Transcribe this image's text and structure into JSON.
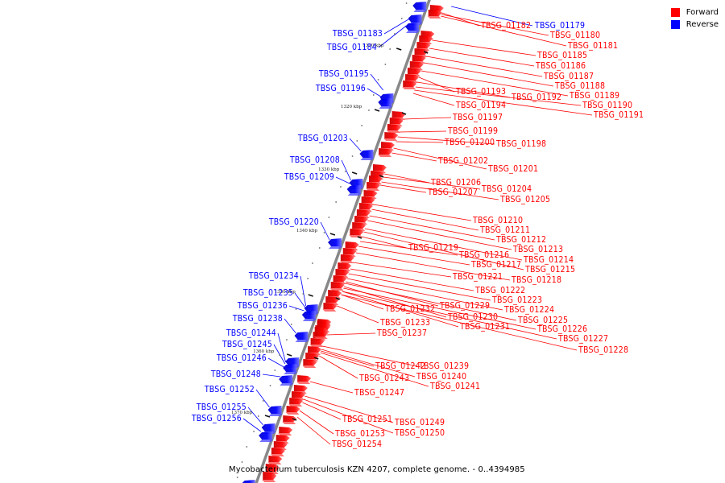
{
  "title": "Mycobacterium tuberculosis KZN 4207, complete genome. - 0..4394985",
  "colors": {
    "forward": "#ff0000",
    "reverse": "#0000ff",
    "backbone": "#888888",
    "tick": "#111111"
  },
  "legend": [
    {
      "label": "Forward",
      "color": "#ff0000"
    },
    {
      "label": "Reverse",
      "color": "#0000ff"
    }
  ],
  "scale_labels": [
    "1310 kbp",
    "1320 kbp",
    "1330 kbp",
    "1340 kbp",
    "1350 kbp",
    "1360 kbp",
    "1370 kbp"
  ],
  "reverse_genes": [
    "TBSG_01179",
    "TBSG_01183",
    "TBSG_01184",
    "TBSG_01195",
    "TBSG_01196",
    "TBSG_01203",
    "TBSG_01208",
    "TBSG_01209",
    "TBSG_01220",
    "TBSG_01234",
    "TBSG_01235",
    "TBSG_01236",
    "TBSG_01238",
    "TBSG_01244",
    "TBSG_01245",
    "TBSG_01246",
    "TBSG_01248",
    "TBSG_01252",
    "TBSG_01255",
    "TBSG_01256"
  ],
  "forward_genes": [
    "TBSG_01182",
    "TBSG_01180",
    "TBSG_01181",
    "TBSG_01185",
    "TBSG_01186",
    "TBSG_01187",
    "TBSG_01188",
    "TBSG_01193",
    "TBSG_01192",
    "TBSG_01189",
    "TBSG_01194",
    "TBSG_01190",
    "TBSG_01191",
    "TBSG_01197",
    "TBSG_01199",
    "TBSG_01200",
    "TBSG_01198",
    "TBSG_01202",
    "TBSG_01201",
    "TBSG_01206",
    "TBSG_01204",
    "TBSG_01207",
    "TBSG_01205",
    "TBSG_01210",
    "TBSG_01211",
    "TBSG_01212",
    "TBSG_01219",
    "TBSG_01213",
    "TBSG_01216",
    "TBSG_01214",
    "TBSG_01217",
    "TBSG_01215",
    "TBSG_01221",
    "TBSG_01218",
    "TBSG_01222",
    "TBSG_01223",
    "TBSG_01232",
    "TBSG_01229",
    "TBSG_01224",
    "TBSG_01230",
    "TBSG_01225",
    "TBSG_01233",
    "TBSG_01231",
    "TBSG_01226",
    "TBSG_01237",
    "TBSG_01227",
    "TBSG_01228",
    "TBSG_01242",
    "TBSG_01239",
    "TBSG_01243",
    "TBSG_01240",
    "TBSG_01241",
    "TBSG_01247",
    "TBSG_01251",
    "TBSG_01249",
    "TBSG_01253",
    "TBSG_01250",
    "TBSG_01254"
  ]
}
